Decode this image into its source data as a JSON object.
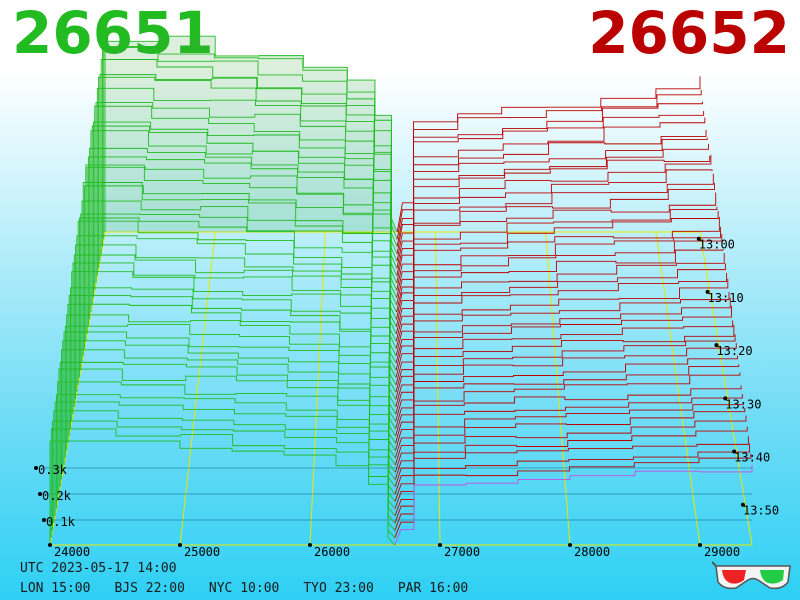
{
  "header": {
    "bid_price": "26651",
    "ask_price": "26652",
    "colors": {
      "bid": "#22bb22",
      "ask": "#bb0000",
      "grid": "#e8e800",
      "last": "#c050e0"
    }
  },
  "footer": {
    "utc": "UTC 2023-05-17 14:00",
    "cities": [
      "LON 15:00",
      "BJS 22:00",
      "NYC 10:00",
      "TYO 23:00",
      "PAR 16:00"
    ],
    "icon": "3d-glasses-icon"
  },
  "chart_data": {
    "type": "area",
    "subtype": "3d-order-book-depth-history",
    "mid_price": 26651.5,
    "price_axis": {
      "ticks": [
        24000,
        25000,
        26000,
        27000,
        28000,
        29000
      ],
      "labels": [
        "24000",
        "25000",
        "26000",
        "27000",
        "28000",
        "29000"
      ],
      "range": [
        24000,
        29400
      ]
    },
    "volume_axis": {
      "labels": [
        "0.1k",
        "0.2k",
        "0.3k"
      ],
      "values": [
        100,
        200,
        300
      ]
    },
    "time_axis": {
      "labels": [
        "13:00",
        "13:10",
        "13:20",
        "13:30",
        "13:40",
        "13:50"
      ]
    },
    "slices": 44,
    "series": [
      {
        "name": "bids",
        "side": "left",
        "depth_at_24000": 430,
        "depth_near_mid": 300,
        "steps": [
          [
            24000,
            430
          ],
          [
            24500,
            410
          ],
          [
            25000,
            395
          ],
          [
            25400,
            380
          ],
          [
            25800,
            360
          ],
          [
            26200,
            330
          ],
          [
            26450,
            250
          ],
          [
            26600,
            30
          ]
        ]
      },
      {
        "name": "asks",
        "side": "right",
        "depth_at_29400": 310,
        "depth_near_mid": 250,
        "steps": [
          [
            26700,
            60
          ],
          [
            26800,
            230
          ],
          [
            27200,
            245
          ],
          [
            27600,
            255
          ],
          [
            28000,
            265
          ],
          [
            28500,
            280
          ],
          [
            29000,
            295
          ],
          [
            29400,
            310
          ]
        ]
      }
    ],
    "grid": true
  }
}
